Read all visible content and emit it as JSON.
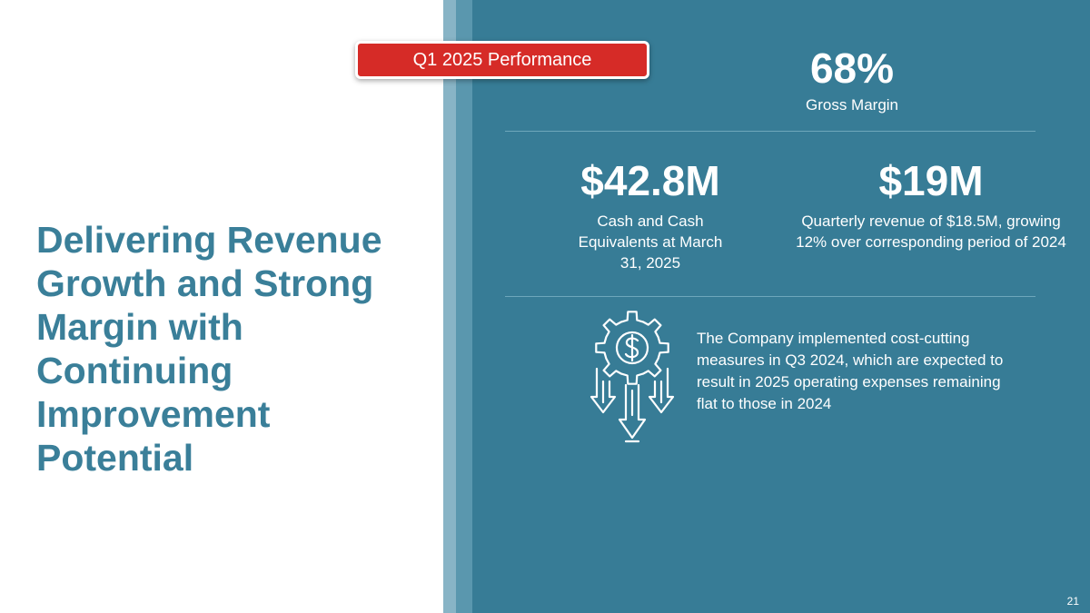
{
  "slide": {
    "headline": "Delivering Revenue Growth and Strong Margin with Continuing Improvement Potential",
    "banner": "Q1 2025 Performance",
    "page_number": "21"
  },
  "metrics": {
    "gross_margin": {
      "value": "68%",
      "label": "Gross Margin"
    },
    "cash": {
      "value": "$42.8M",
      "label": "Cash and Cash Equivalents at March 31, 2025"
    },
    "revenue": {
      "value": "$19M",
      "label": "Quarterly revenue of $18.5M, growing 12% over corresponding period of 2024"
    }
  },
  "cost_note": {
    "icon": "gear-dollar-down-arrows-icon",
    "text": "The Company implemented cost-cutting measures in Q3 2024, which are expected to result in 2025 operating expenses remaining flat to those in 2024"
  },
  "colors": {
    "headline": "#3a7f99",
    "panel": "#377c96",
    "banner": "#d62b27"
  }
}
